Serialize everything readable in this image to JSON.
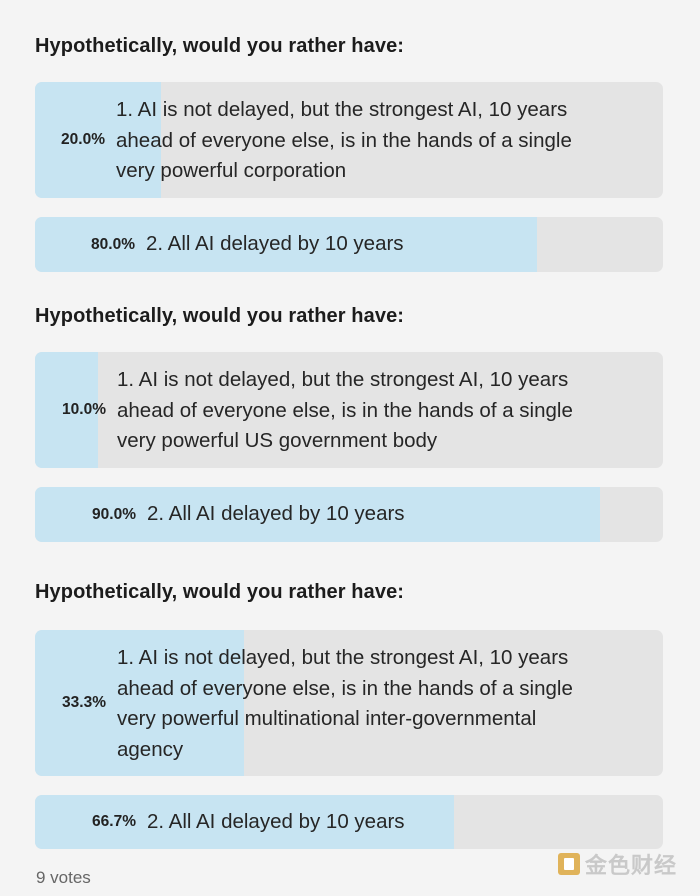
{
  "polls": [
    {
      "title": "Hypothetically, would you rather have:",
      "options": [
        {
          "percent": "20.0%",
          "fill": 0.2,
          "label": "1. AI is not delayed, but the strongest AI, 10 years\nahead of everyone else, is in the hands of a single\nvery powerful corporation"
        },
        {
          "percent": "80.0%",
          "fill": 0.8,
          "label": "2. All AI delayed by 10 years"
        }
      ]
    },
    {
      "title": "Hypothetically, would you rather have:",
      "options": [
        {
          "percent": "10.0%",
          "fill": 0.1,
          "label": "1. AI is not delayed, but the strongest AI, 10 years\nahead of everyone else, is in the hands of a single\nvery powerful US government body"
        },
        {
          "percent": "90.0%",
          "fill": 0.9,
          "label": "2. All AI delayed by 10 years"
        }
      ]
    },
    {
      "title": "Hypothetically, would you rather have:",
      "options": [
        {
          "percent": "33.3%",
          "fill": 0.333,
          "label": "1. AI is not delayed, but the strongest AI, 10 years\nahead of everyone else, is in the hands of a single\nvery powerful multinational inter-governmental\nagency"
        },
        {
          "percent": "66.7%",
          "fill": 0.667,
          "label": "2. All AI delayed by 10 years"
        }
      ]
    }
  ],
  "footer": {
    "votes": "9 votes"
  },
  "watermark": {
    "text": "金色财经",
    "icon": "brand-logo-icon"
  },
  "colors": {
    "fill": "#c7e4f2",
    "track": "#e4e4e4",
    "background": "#f4f4f4"
  }
}
